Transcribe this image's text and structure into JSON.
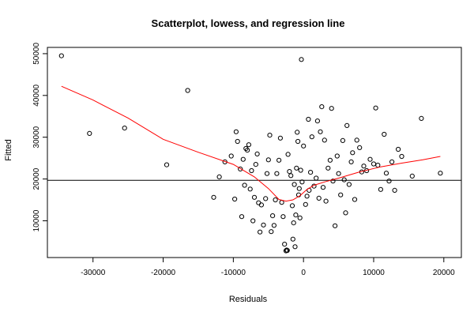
{
  "chart_data": {
    "type": "scatter",
    "title": "Scatterplot, lowess, and regression line",
    "xlabel": "Residuals",
    "ylabel": "Fitted",
    "xlim": [
      -36500,
      22500
    ],
    "ylim": [
      1200,
      51500
    ],
    "x_ticks": [
      -30000,
      -20000,
      -10000,
      0,
      10000,
      20000
    ],
    "x_tick_labels": [
      "-30000",
      "-20000",
      "-10000",
      "0",
      "10000",
      "20000"
    ],
    "y_ticks": [
      10000,
      20000,
      30000,
      40000,
      50000
    ],
    "y_tick_labels": [
      "10000",
      "20000",
      "30000",
      "40000",
      "50000"
    ],
    "grid": false,
    "colors": {
      "points": "#000000",
      "lowess": "#ff0000",
      "regression": "#000000",
      "frame": "#000000"
    },
    "regression_line_y": 19700,
    "points": [
      [
        -34500,
        49500
      ],
      [
        -30500,
        30900
      ],
      [
        -25500,
        32200
      ],
      [
        -19500,
        23400
      ],
      [
        -16500,
        41200
      ],
      [
        -12800,
        15600
      ],
      [
        -12000,
        20500
      ],
      [
        -11200,
        24100
      ],
      [
        -10300,
        25500
      ],
      [
        -9800,
        15200
      ],
      [
        -9600,
        31300
      ],
      [
        -9400,
        29000
      ],
      [
        -9000,
        22400
      ],
      [
        -8800,
        11000
      ],
      [
        -8600,
        24700
      ],
      [
        -8400,
        18500
      ],
      [
        -8200,
        27300
      ],
      [
        -8000,
        26900
      ],
      [
        -7800,
        28200
      ],
      [
        -7600,
        17600
      ],
      [
        -7400,
        22000
      ],
      [
        -7200,
        10000
      ],
      [
        -7000,
        15600
      ],
      [
        -6800,
        23500
      ],
      [
        -6600,
        26000
      ],
      [
        -6400,
        14300
      ],
      [
        -6200,
        7300
      ],
      [
        -6000,
        13800
      ],
      [
        -5700,
        9000
      ],
      [
        -5400,
        15300
      ],
      [
        -5200,
        21300
      ],
      [
        -5000,
        24600
      ],
      [
        -4800,
        30500
      ],
      [
        -4600,
        7400
      ],
      [
        -4400,
        11200
      ],
      [
        -4200,
        8900
      ],
      [
        -4000,
        15000
      ],
      [
        -3800,
        21300
      ],
      [
        -3500,
        24500
      ],
      [
        -3300,
        29800
      ],
      [
        -3100,
        14400
      ],
      [
        -2900,
        11000
      ],
      [
        -2700,
        4400
      ],
      [
        -2500,
        2800
      ],
      [
        -2400,
        3000
      ],
      [
        -2300,
        2900
      ],
      [
        -2200,
        25900
      ],
      [
        -2000,
        21800
      ],
      [
        -1800,
        20800
      ],
      [
        -1600,
        13600
      ],
      [
        -1500,
        5600
      ],
      [
        -1400,
        9500
      ],
      [
        -1300,
        18700
      ],
      [
        -1200,
        3800
      ],
      [
        -1100,
        11400
      ],
      [
        -1000,
        22600
      ],
      [
        -900,
        31200
      ],
      [
        -800,
        29000
      ],
      [
        -700,
        16200
      ],
      [
        -600,
        17700
      ],
      [
        -500,
        10700
      ],
      [
        -400,
        22100
      ],
      [
        -300,
        48600
      ],
      [
        -200,
        19300
      ],
      [
        0,
        27900
      ],
      [
        300,
        13900
      ],
      [
        500,
        15900
      ],
      [
        700,
        34300
      ],
      [
        800,
        17300
      ],
      [
        1000,
        21600
      ],
      [
        1200,
        30100
      ],
      [
        1500,
        18300
      ],
      [
        1800,
        20200
      ],
      [
        2000,
        33900
      ],
      [
        2200,
        15400
      ],
      [
        2400,
        31300
      ],
      [
        2600,
        37300
      ],
      [
        2800,
        18000
      ],
      [
        3000,
        29300
      ],
      [
        3200,
        14700
      ],
      [
        3500,
        22600
      ],
      [
        3800,
        24500
      ],
      [
        4000,
        36900
      ],
      [
        4200,
        19500
      ],
      [
        4500,
        8800
      ],
      [
        4800,
        25500
      ],
      [
        5000,
        21300
      ],
      [
        5300,
        16200
      ],
      [
        5600,
        29200
      ],
      [
        5800,
        19800
      ],
      [
        6000,
        11900
      ],
      [
        6200,
        32800
      ],
      [
        6500,
        18700
      ],
      [
        6800,
        24100
      ],
      [
        7000,
        26300
      ],
      [
        7300,
        15100
      ],
      [
        7600,
        29300
      ],
      [
        8000,
        27500
      ],
      [
        8300,
        21700
      ],
      [
        8600,
        23100
      ],
      [
        9000,
        22000
      ],
      [
        9500,
        24700
      ],
      [
        10000,
        23600
      ],
      [
        10300,
        37000
      ],
      [
        10600,
        23300
      ],
      [
        11000,
        17500
      ],
      [
        11500,
        30700
      ],
      [
        11800,
        21400
      ],
      [
        12200,
        19500
      ],
      [
        12600,
        24100
      ],
      [
        13000,
        17300
      ],
      [
        13500,
        27100
      ],
      [
        14000,
        25400
      ],
      [
        15500,
        20700
      ],
      [
        16800,
        34500
      ],
      [
        19500,
        21400
      ]
    ],
    "lowess_line": [
      [
        -34500,
        42200
      ],
      [
        -30000,
        38900
      ],
      [
        -25000,
        34600
      ],
      [
        -20000,
        29500
      ],
      [
        -15000,
        26400
      ],
      [
        -10000,
        23500
      ],
      [
        -7000,
        20500
      ],
      [
        -5000,
        17700
      ],
      [
        -3500,
        15100
      ],
      [
        -2500,
        14700
      ],
      [
        -1500,
        15000
      ],
      [
        -500,
        16000
      ],
      [
        500,
        17500
      ],
      [
        1500,
        18500
      ],
      [
        3000,
        19300
      ],
      [
        5000,
        20200
      ],
      [
        8000,
        21700
      ],
      [
        11000,
        22900
      ],
      [
        14000,
        23800
      ],
      [
        17000,
        24600
      ],
      [
        19500,
        25400
      ]
    ]
  }
}
